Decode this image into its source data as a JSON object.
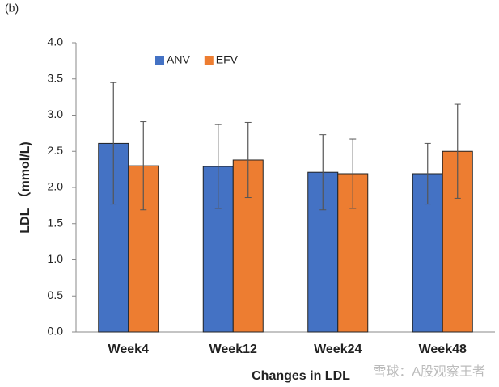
{
  "panel_label": "(b)",
  "watermark": "雪球：A股观察王者",
  "chart_data": {
    "type": "bar",
    "x_label": "Changes in LDL",
    "y_label": "LDL （mmol/L)",
    "categories": [
      "Week4",
      "Week12",
      "Week24",
      "Week48"
    ],
    "series": [
      {
        "name": "ANV",
        "color": "#4472c4",
        "values": [
          2.61,
          2.29,
          2.21,
          2.19
        ],
        "errors": [
          0.84,
          0.58,
          0.52,
          0.42
        ]
      },
      {
        "name": "EFV",
        "color": "#ed7d31",
        "values": [
          2.3,
          2.38,
          2.19,
          2.5
        ],
        "errors": [
          0.61,
          0.52,
          0.48,
          0.65
        ]
      }
    ],
    "ylim": [
      0,
      4
    ],
    "yticks": [
      {
        "value": 0,
        "label": "0.0"
      },
      0.5,
      {
        "value": 1,
        "label": "1.0"
      },
      1.5,
      {
        "value": 2,
        "label": "2.0"
      },
      2.5,
      {
        "value": 3,
        "label": "3.0"
      },
      3.5,
      {
        "value": 4,
        "label": "4.0"
      }
    ],
    "legend": "top-left",
    "grid": false
  }
}
